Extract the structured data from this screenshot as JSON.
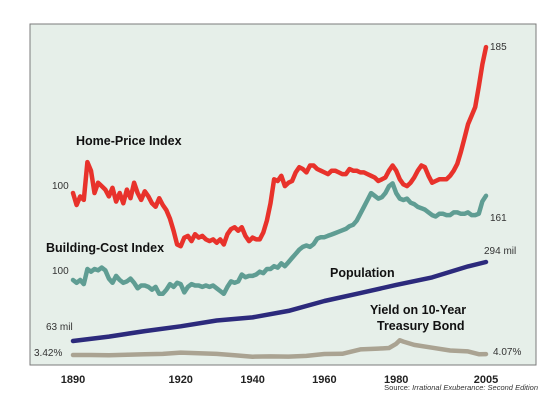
{
  "chart_data": {
    "type": "line",
    "xlim": [
      1890,
      2005
    ],
    "x_ticks": [
      "1890",
      "1920",
      "1940",
      "1960",
      "1980",
      "2005"
    ],
    "x_tick_values": [
      1890,
      1920,
      1940,
      1960,
      1980,
      2005
    ],
    "grid": false,
    "background": "#e6efe9",
    "source": {
      "prefix": "Source: ",
      "title": "Irrational Exuberance",
      "suffix": ": Second Edition"
    },
    "series": [
      {
        "key": "home",
        "name": "Home-Price Index",
        "color": "#e8322b",
        "start_label": "100",
        "end_label": "185",
        "points": [
          [
            1890,
            100
          ],
          [
            1891,
            93
          ],
          [
            1892,
            98
          ],
          [
            1893,
            96
          ],
          [
            1894,
            118
          ],
          [
            1895,
            113
          ],
          [
            1896,
            100
          ],
          [
            1897,
            106
          ],
          [
            1898,
            104
          ],
          [
            1899,
            102
          ],
          [
            1900,
            98
          ],
          [
            1901,
            103
          ],
          [
            1902,
            95
          ],
          [
            1903,
            100
          ],
          [
            1904,
            94
          ],
          [
            1905,
            102
          ],
          [
            1906,
            97
          ],
          [
            1907,
            106
          ],
          [
            1908,
            100
          ],
          [
            1909,
            96
          ],
          [
            1910,
            101
          ],
          [
            1911,
            98
          ],
          [
            1912,
            94
          ],
          [
            1913,
            92
          ],
          [
            1914,
            97
          ],
          [
            1915,
            93
          ],
          [
            1916,
            90
          ],
          [
            1917,
            85
          ],
          [
            1918,
            78
          ],
          [
            1919,
            70
          ],
          [
            1920,
            69
          ],
          [
            1921,
            74
          ],
          [
            1922,
            75
          ],
          [
            1923,
            72
          ],
          [
            1924,
            76
          ],
          [
            1925,
            74
          ],
          [
            1926,
            75
          ],
          [
            1927,
            73
          ],
          [
            1928,
            72
          ],
          [
            1929,
            73
          ],
          [
            1930,
            71
          ],
          [
            1931,
            73
          ],
          [
            1932,
            70
          ],
          [
            1933,
            76
          ],
          [
            1934,
            79
          ],
          [
            1935,
            80
          ],
          [
            1936,
            78
          ],
          [
            1937,
            80
          ],
          [
            1938,
            75
          ],
          [
            1939,
            72
          ],
          [
            1940,
            74
          ],
          [
            1941,
            73
          ],
          [
            1942,
            73
          ],
          [
            1943,
            77
          ],
          [
            1944,
            84
          ],
          [
            1945,
            94
          ],
          [
            1946,
            108
          ],
          [
            1947,
            107
          ],
          [
            1948,
            110
          ],
          [
            1949,
            104
          ],
          [
            1950,
            106
          ],
          [
            1951,
            107
          ],
          [
            1952,
            112
          ],
          [
            1953,
            115
          ],
          [
            1954,
            114
          ],
          [
            1955,
            112
          ],
          [
            1956,
            116
          ],
          [
            1957,
            116
          ],
          [
            1958,
            114
          ],
          [
            1959,
            113
          ],
          [
            1960,
            112
          ],
          [
            1961,
            111
          ],
          [
            1962,
            113
          ],
          [
            1963,
            113
          ],
          [
            1964,
            112
          ],
          [
            1965,
            111
          ],
          [
            1966,
            111
          ],
          [
            1967,
            114
          ],
          [
            1968,
            113
          ],
          [
            1969,
            113
          ],
          [
            1970,
            112
          ],
          [
            1971,
            112
          ],
          [
            1972,
            111
          ],
          [
            1973,
            110
          ],
          [
            1974,
            109
          ],
          [
            1975,
            107
          ],
          [
            1976,
            108
          ],
          [
            1977,
            109
          ],
          [
            1978,
            113
          ],
          [
            1979,
            116
          ],
          [
            1980,
            113
          ],
          [
            1981,
            108
          ],
          [
            1982,
            105
          ],
          [
            1983,
            104
          ],
          [
            1984,
            106
          ],
          [
            1985,
            109
          ],
          [
            1986,
            113
          ],
          [
            1987,
            116
          ],
          [
            1988,
            115
          ],
          [
            1989,
            110
          ],
          [
            1990,
            106
          ],
          [
            1991,
            107
          ],
          [
            1992,
            108
          ],
          [
            1993,
            108
          ],
          [
            1994,
            108
          ],
          [
            1995,
            110
          ],
          [
            1996,
            113
          ],
          [
            1997,
            117
          ],
          [
            1998,
            124
          ],
          [
            1999,
            132
          ],
          [
            2000,
            140
          ],
          [
            2001,
            145
          ],
          [
            2002,
            150
          ],
          [
            2003,
            162
          ],
          [
            2004,
            175
          ],
          [
            2005,
            185
          ]
        ]
      },
      {
        "key": "building",
        "name": "Building-Cost Index",
        "color": "#5f9d93",
        "start_label": "100",
        "end_label": "161",
        "points": [
          [
            1890,
            100
          ],
          [
            1891,
            98
          ],
          [
            1892,
            100
          ],
          [
            1893,
            97
          ],
          [
            1894,
            108
          ],
          [
            1895,
            106
          ],
          [
            1896,
            108
          ],
          [
            1897,
            107
          ],
          [
            1898,
            109
          ],
          [
            1899,
            107
          ],
          [
            1900,
            101
          ],
          [
            1901,
            98
          ],
          [
            1902,
            103
          ],
          [
            1903,
            100
          ],
          [
            1904,
            98
          ],
          [
            1905,
            99
          ],
          [
            1906,
            101
          ],
          [
            1907,
            98
          ],
          [
            1908,
            94
          ],
          [
            1909,
            96
          ],
          [
            1910,
            96
          ],
          [
            1911,
            95
          ],
          [
            1912,
            93
          ],
          [
            1913,
            95
          ],
          [
            1914,
            90
          ],
          [
            1915,
            90
          ],
          [
            1916,
            93
          ],
          [
            1917,
            97
          ],
          [
            1918,
            95
          ],
          [
            1919,
            98
          ],
          [
            1920,
            97
          ],
          [
            1921,
            91
          ],
          [
            1922,
            95
          ],
          [
            1923,
            97
          ],
          [
            1924,
            96
          ],
          [
            1925,
            96
          ],
          [
            1926,
            95
          ],
          [
            1927,
            96
          ],
          [
            1928,
            95
          ],
          [
            1929,
            96
          ],
          [
            1930,
            94
          ],
          [
            1931,
            92
          ],
          [
            1932,
            90
          ],
          [
            1933,
            95
          ],
          [
            1934,
            99
          ],
          [
            1935,
            98
          ],
          [
            1936,
            99
          ],
          [
            1937,
            104
          ],
          [
            1938,
            102
          ],
          [
            1939,
            103
          ],
          [
            1940,
            103
          ],
          [
            1941,
            104
          ],
          [
            1942,
            106
          ],
          [
            1943,
            105
          ],
          [
            1944,
            108
          ],
          [
            1945,
            108
          ],
          [
            1946,
            110
          ],
          [
            1947,
            109
          ],
          [
            1948,
            112
          ],
          [
            1949,
            110
          ],
          [
            1950,
            113
          ],
          [
            1951,
            116
          ],
          [
            1952,
            119
          ],
          [
            1953,
            122
          ],
          [
            1954,
            124
          ],
          [
            1955,
            125
          ],
          [
            1956,
            124
          ],
          [
            1957,
            126
          ],
          [
            1958,
            130
          ],
          [
            1959,
            131
          ],
          [
            1960,
            131
          ],
          [
            1961,
            132
          ],
          [
            1962,
            133
          ],
          [
            1963,
            134
          ],
          [
            1964,
            135
          ],
          [
            1965,
            136
          ],
          [
            1966,
            137
          ],
          [
            1967,
            139
          ],
          [
            1968,
            140
          ],
          [
            1969,
            143
          ],
          [
            1970,
            148
          ],
          [
            1971,
            153
          ],
          [
            1972,
            158
          ],
          [
            1973,
            163
          ],
          [
            1974,
            161
          ],
          [
            1975,
            159
          ],
          [
            1976,
            160
          ],
          [
            1977,
            163
          ],
          [
            1978,
            168
          ],
          [
            1979,
            170
          ],
          [
            1980,
            163
          ],
          [
            1981,
            159
          ],
          [
            1982,
            158
          ],
          [
            1983,
            159
          ],
          [
            1984,
            156
          ],
          [
            1985,
            155
          ],
          [
            1986,
            153
          ],
          [
            1987,
            152
          ],
          [
            1988,
            151
          ],
          [
            1989,
            149
          ],
          [
            1990,
            147
          ],
          [
            1991,
            146
          ],
          [
            1992,
            148
          ],
          [
            1993,
            148
          ],
          [
            1994,
            147
          ],
          [
            1995,
            147
          ],
          [
            1996,
            149
          ],
          [
            1997,
            149
          ],
          [
            1998,
            148
          ],
          [
            1999,
            148
          ],
          [
            2000,
            149
          ],
          [
            2001,
            147
          ],
          [
            2002,
            147
          ],
          [
            2003,
            148
          ],
          [
            2004,
            157
          ],
          [
            2005,
            161
          ]
        ]
      },
      {
        "key": "population",
        "name": "Population",
        "color": "#2c2a7c",
        "start_label": "63 mil",
        "end_label": "294 mil",
        "points": [
          [
            1890,
            63
          ],
          [
            1900,
            76
          ],
          [
            1910,
            92
          ],
          [
            1920,
            106
          ],
          [
            1930,
            123
          ],
          [
            1940,
            132
          ],
          [
            1950,
            151
          ],
          [
            1960,
            180
          ],
          [
            1970,
            203
          ],
          [
            1980,
            227
          ],
          [
            1990,
            249
          ],
          [
            2000,
            281
          ],
          [
            2005,
            294
          ]
        ]
      },
      {
        "key": "yield",
        "name": "Yield on 10-Year Treasury Bond",
        "name_lines": [
          "Yield on 10-Year",
          "Treasury Bond"
        ],
        "color": "#aaa392",
        "start_label": "3.42%",
        "end_label": "4.07%",
        "points": [
          [
            1890,
            3.42
          ],
          [
            1895,
            3.4
          ],
          [
            1900,
            3.3
          ],
          [
            1905,
            3.6
          ],
          [
            1910,
            3.9
          ],
          [
            1915,
            4.2
          ],
          [
            1920,
            5.1
          ],
          [
            1925,
            4.6
          ],
          [
            1930,
            4.2
          ],
          [
            1935,
            3.2
          ],
          [
            1940,
            2.2
          ],
          [
            1945,
            2.4
          ],
          [
            1950,
            2.3
          ],
          [
            1955,
            2.8
          ],
          [
            1960,
            4.1
          ],
          [
            1965,
            4.3
          ],
          [
            1970,
            7.4
          ],
          [
            1975,
            8.0
          ],
          [
            1978,
            8.4
          ],
          [
            1980,
            11.4
          ],
          [
            1981,
            13.9
          ],
          [
            1982,
            13.0
          ],
          [
            1985,
            10.6
          ],
          [
            1990,
            8.6
          ],
          [
            1995,
            6.6
          ],
          [
            2000,
            6.0
          ],
          [
            2003,
            4.0
          ],
          [
            2005,
            4.07
          ]
        ]
      }
    ]
  }
}
